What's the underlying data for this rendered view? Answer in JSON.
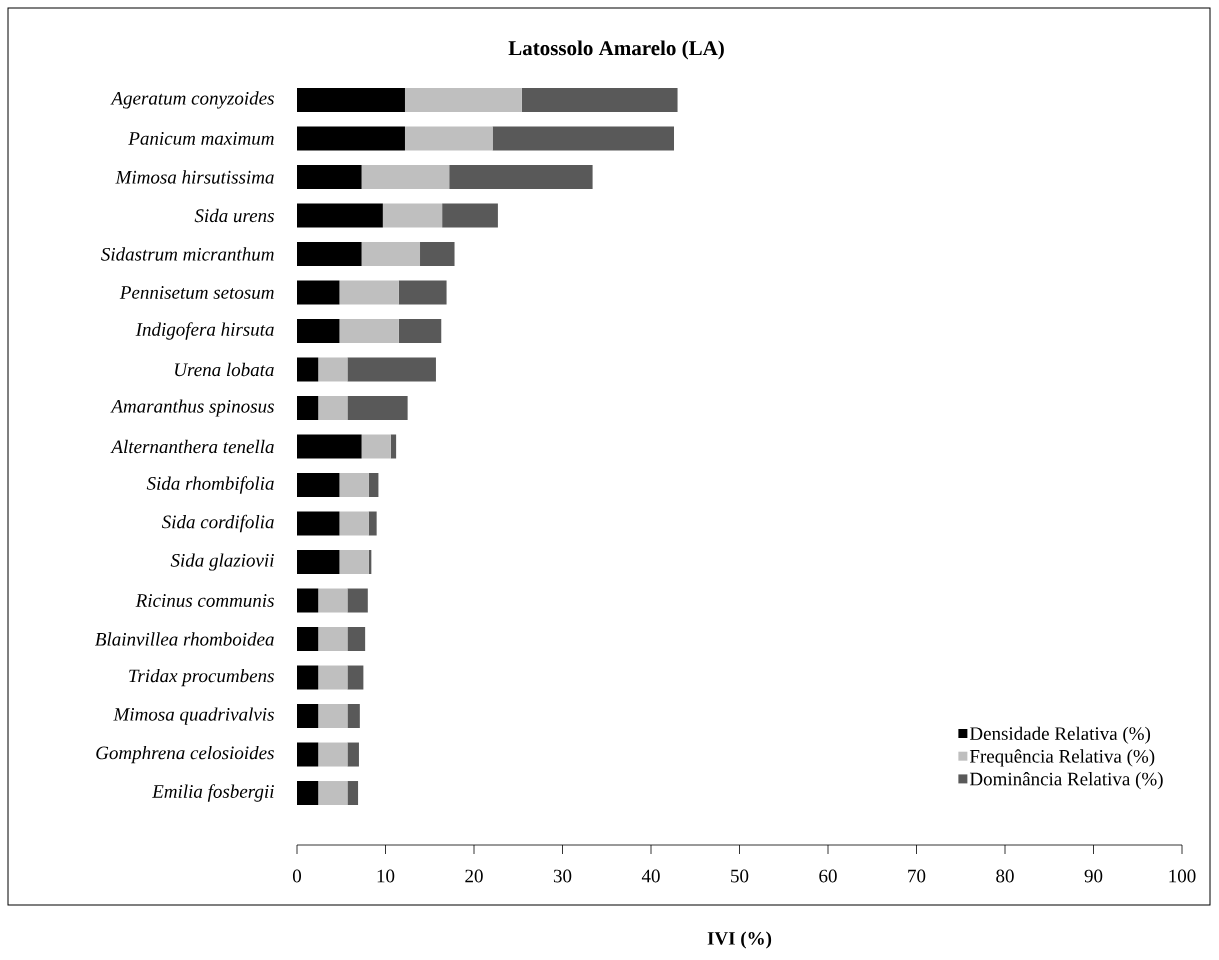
{
  "chart_data": {
    "type": "bar",
    "orientation": "horizontal",
    "stacked": true,
    "title": "Latossolo Amarelo (LA)",
    "xlabel": "IVI (%)",
    "categories": [
      "Ageratum conyzoides",
      "Panicum maximum",
      "Mimosa hirsutissima",
      "Sida urens",
      "Sidastrum micranthum",
      "Pennisetum setosum",
      "Indigofera hirsuta",
      "Urena lobata",
      "Amaranthus spinosus",
      "Alternanthera tenella",
      "Sida rhombifolia",
      "Sida cordifolia",
      "Sida glaziovii",
      "Ricinus communis",
      "Blainvillea rhomboidea",
      "Tridax procumbens",
      "Mimosa quadrivalvis",
      "Gomphrena celosioides",
      "Emilia fosbergii"
    ],
    "series": [
      {
        "name": "Densidade  Relativa  (%)",
        "color": "#000000",
        "values": [
          12.2,
          12.2,
          7.3,
          9.7,
          7.3,
          4.8,
          4.8,
          2.4,
          2.4,
          7.3,
          4.8,
          4.8,
          4.8,
          2.4,
          2.4,
          2.4,
          2.4,
          2.4,
          2.4
        ]
      },
      {
        "name": "Frequência  Relativa  (%)",
        "color": "#bfbfbf",
        "values": [
          13.2,
          9.9,
          9.9,
          6.7,
          6.6,
          6.7,
          6.7,
          3.3,
          3.3,
          3.3,
          3.3,
          3.3,
          3.3,
          3.3,
          3.3,
          3.3,
          3.3,
          3.3,
          3.3
        ]
      },
      {
        "name": "Dominância Relativa (%)",
        "color": "#595959",
        "values": [
          17.6,
          20.5,
          16.2,
          6.3,
          3.9,
          5.4,
          4.8,
          10.0,
          6.8,
          0.6,
          1.1,
          0.9,
          0.3,
          2.3,
          2.0,
          1.8,
          1.4,
          1.3,
          1.2
        ]
      }
    ],
    "xlim": [
      0,
      100
    ],
    "xticks": [
      0,
      10,
      20,
      30,
      40,
      50,
      60,
      70,
      80,
      90,
      100
    ],
    "legend": "bottom right"
  }
}
